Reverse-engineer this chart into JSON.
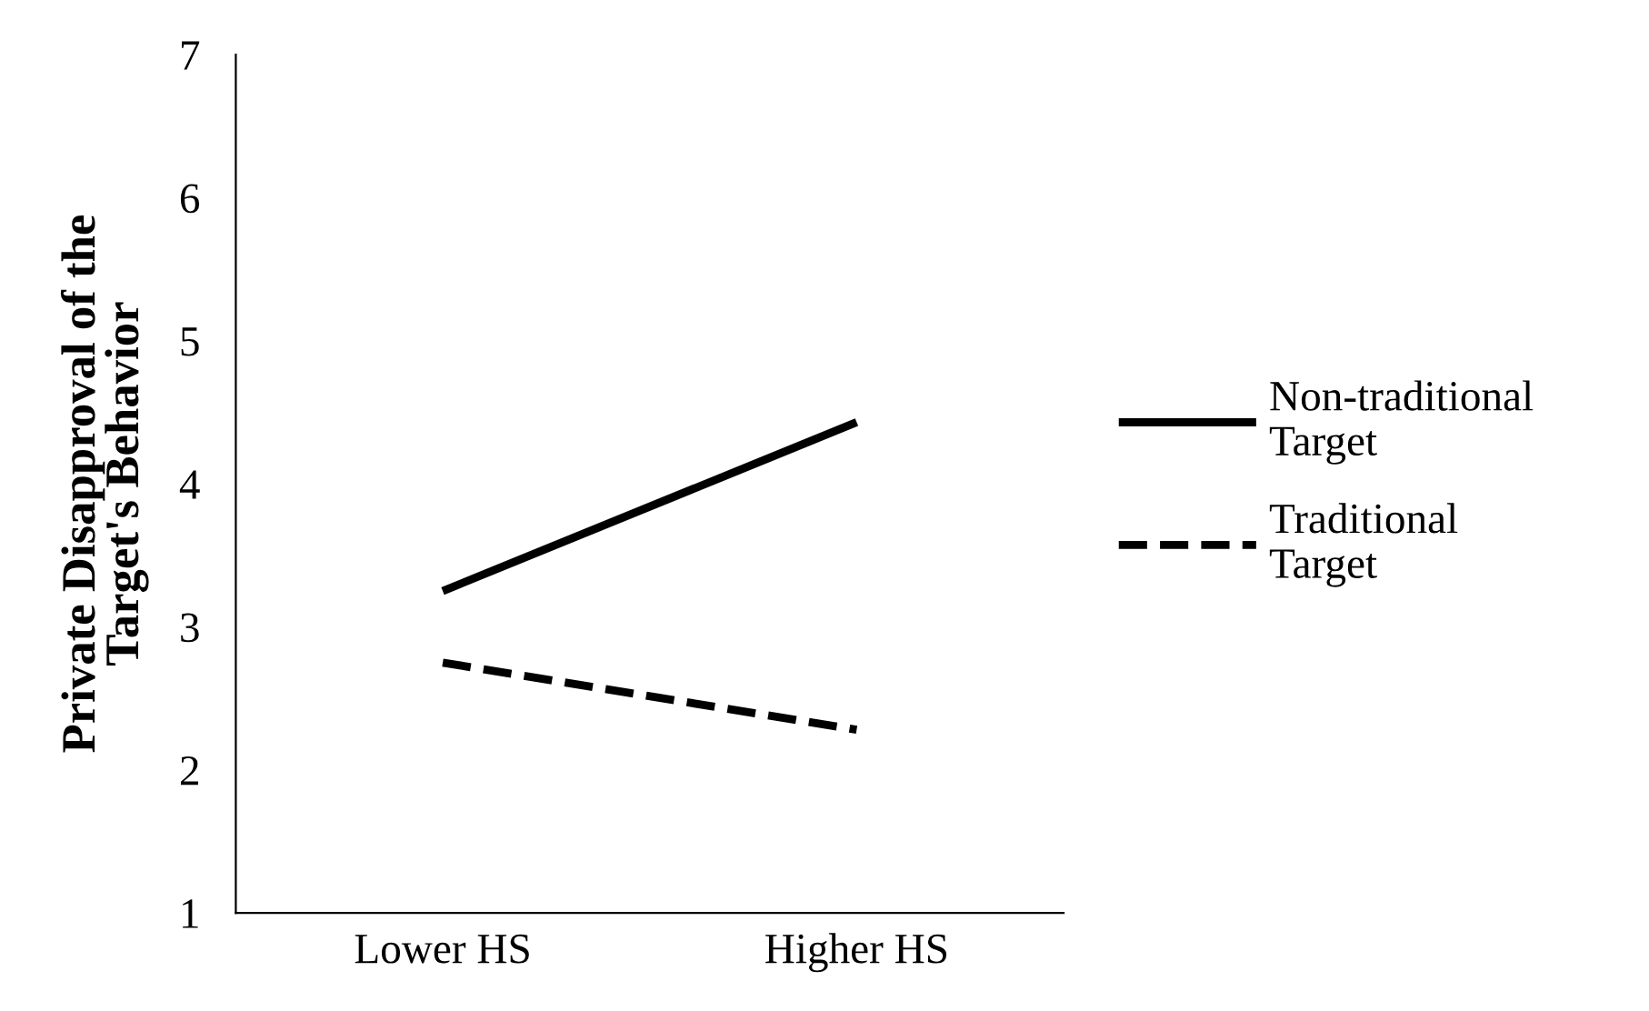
{
  "chart_data": {
    "type": "line",
    "ylabel": "Private Disapproval of the\nTarget's Behavior",
    "categories": [
      "Lower HS",
      "Higher HS"
    ],
    "series": [
      {
        "name": "Non-traditional\nTarget",
        "color": "#000000",
        "values": [
          3.25,
          4.43
        ],
        "line_style": "solid"
      },
      {
        "name": "Traditional\nTarget",
        "color": "#000000",
        "values": [
          2.75,
          2.28
        ],
        "line_style": "dashed"
      }
    ],
    "ylim": [
      1,
      7
    ],
    "yticks": [
      1,
      2,
      3,
      4,
      5,
      6,
      7
    ],
    "grid": false,
    "legend": "right",
    "marker": "none"
  }
}
